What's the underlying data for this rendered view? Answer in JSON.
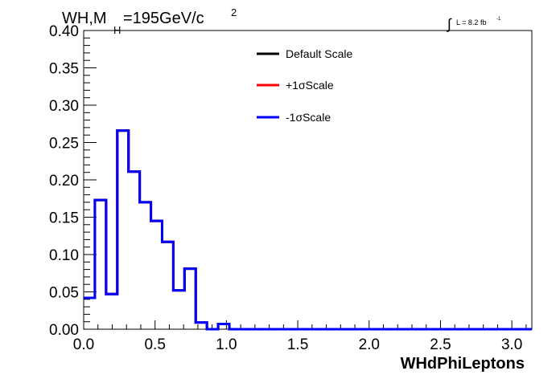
{
  "header": {
    "title_main": "WH,M",
    "title_sub": "H",
    "title_rest": "=195GeV/c",
    "title_sup": "2",
    "lumi_text": "L = 8.2 fb",
    "lumi_sup": "-1"
  },
  "chart_data": {
    "type": "line",
    "xlabel": "WHdPhiLeptons",
    "ylabel": "",
    "xlim": [
      0,
      3.14
    ],
    "ylim": [
      0,
      0.4
    ],
    "xticks": [
      "0.0",
      "0.5",
      "1.0",
      "1.5",
      "2.0",
      "2.5",
      "3.0"
    ],
    "yticks": [
      "0.00",
      "0.05",
      "0.10",
      "0.15",
      "0.20",
      "0.25",
      "0.30",
      "0.35",
      "0.40"
    ],
    "bin_edges": [
      0,
      0.0785,
      0.157,
      0.2355,
      0.314,
      0.3925,
      0.471,
      0.5495,
      0.628,
      0.7065,
      0.785,
      0.8635,
      0.942,
      1.0205,
      3.14
    ],
    "legend_position": "top-center",
    "series": [
      {
        "name": "Default Scale",
        "color": "#000000",
        "values": [
          0.042,
          0.173,
          0.047,
          0.266,
          0.211,
          0.17,
          0.145,
          0.117,
          0.052,
          0.081,
          0.009,
          0.0,
          0.007,
          0.0
        ]
      },
      {
        "name": "+1σScale",
        "color": "#ff0000",
        "values": [
          0.042,
          0.173,
          0.047,
          0.266,
          0.211,
          0.17,
          0.145,
          0.117,
          0.052,
          0.081,
          0.009,
          0.0,
          0.007,
          0.0
        ]
      },
      {
        "name": "-1σScale",
        "color": "#0000ff",
        "values": [
          0.042,
          0.173,
          0.047,
          0.266,
          0.211,
          0.17,
          0.145,
          0.117,
          0.052,
          0.081,
          0.009,
          0.0,
          0.007,
          0.0
        ]
      }
    ]
  }
}
